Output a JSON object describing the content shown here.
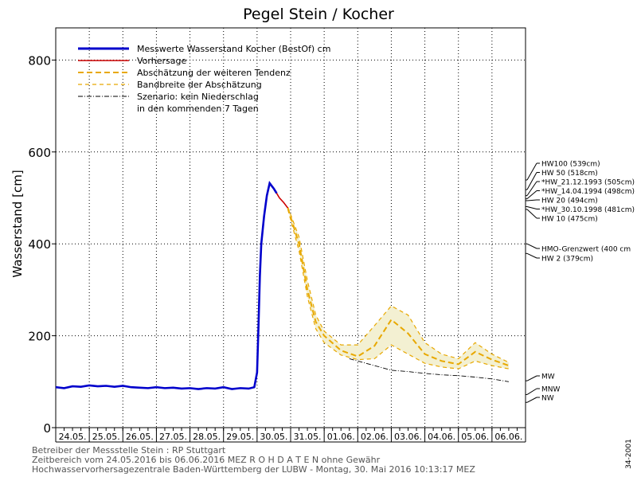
{
  "chart_data": {
    "type": "line",
    "title": "Pegel Stein / Kocher",
    "ylabel": "Wasserstand [cm]",
    "ylim": [
      0,
      870
    ],
    "yticks": [
      0,
      200,
      400,
      600,
      800
    ],
    "x_range": [
      "24.05.2016 00:00",
      "07.06.2016 00:00"
    ],
    "x_tick_labels": [
      "24.05.",
      "25.05.",
      "26.05.",
      "27.05.",
      "28.05.",
      "29.05.",
      "30.05.",
      "31.05.",
      "01.06.",
      "02.06.",
      "03.06.",
      "04.06.",
      "05.06.",
      "06.06."
    ],
    "grid": true,
    "legend": {
      "position": "top-left",
      "entries": [
        {
          "label": "Messwerte Wasserstand Kocher  (BestOf) cm",
          "color": "#0000cc",
          "style": "solid-thick"
        },
        {
          "label": "Vorhersage",
          "color": "#cc0000",
          "style": "solid"
        },
        {
          "label": "Abschätzung der weiteren Tendenz",
          "color": "#e8a800",
          "style": "dashed-thick"
        },
        {
          "label": "Bandbreite der Abschätzung",
          "color": "#e8a800",
          "style": "dashed"
        },
        {
          "label": "Szenario: kein Niederschlag",
          "color": "#000000",
          "style": "dash-dot"
        },
        {
          "label": "in den kommenden 7 Tagen",
          "color": "",
          "style": "none"
        }
      ]
    },
    "series": [
      {
        "name": "Messwerte Wasserstand Kocher  (BestOf) cm",
        "color": "#0000cc",
        "points": [
          [
            "24.05.2016 00:00",
            88
          ],
          [
            "24.05.2016 06:00",
            86
          ],
          [
            "24.05.2016 12:00",
            90
          ],
          [
            "24.05.2016 18:00",
            89
          ],
          [
            "25.05.2016 00:00",
            92
          ],
          [
            "25.05.2016 06:00",
            90
          ],
          [
            "25.05.2016 12:00",
            91
          ],
          [
            "25.05.2016 18:00",
            89
          ],
          [
            "26.05.2016 00:00",
            91
          ],
          [
            "26.05.2016 06:00",
            88
          ],
          [
            "26.05.2016 12:00",
            87
          ],
          [
            "26.05.2016 18:00",
            86
          ],
          [
            "27.05.2016 00:00",
            88
          ],
          [
            "27.05.2016 06:00",
            86
          ],
          [
            "27.05.2016 12:00",
            87
          ],
          [
            "27.05.2016 18:00",
            85
          ],
          [
            "28.05.2016 00:00",
            86
          ],
          [
            "28.05.2016 06:00",
            84
          ],
          [
            "28.05.2016 12:00",
            86
          ],
          [
            "28.05.2016 18:00",
            85
          ],
          [
            "29.05.2016 00:00",
            88
          ],
          [
            "29.05.2016 06:00",
            84
          ],
          [
            "29.05.2016 12:00",
            86
          ],
          [
            "29.05.2016 18:00",
            85
          ],
          [
            "29.05.2016 22:00",
            88
          ],
          [
            "30.05.2016 00:00",
            120
          ],
          [
            "30.05.2016 01:00",
            220
          ],
          [
            "30.05.2016 02:00",
            330
          ],
          [
            "30.05.2016 03:00",
            400
          ],
          [
            "30.05.2016 05:00",
            460
          ],
          [
            "30.05.2016 07:00",
            505
          ],
          [
            "30.05.2016 09:00",
            532
          ],
          [
            "30.05.2016 12:00",
            520
          ],
          [
            "30.05.2016 14:00",
            510
          ]
        ]
      },
      {
        "name": "Vorhersage",
        "color": "#cc0000",
        "points": [
          [
            "30.05.2016 14:00",
            510
          ],
          [
            "30.05.2016 16:00",
            500
          ],
          [
            "30.05.2016 19:00",
            490
          ],
          [
            "30.05.2016 22:00",
            478
          ]
        ]
      },
      {
        "name": "Abschätzung der weiteren Tendenz",
        "color": "#e8a800",
        "points": [
          [
            "30.05.2016 22:00",
            478
          ],
          [
            "31.05.2016 06:00",
            400
          ],
          [
            "31.05.2016 12:00",
            300
          ],
          [
            "31.05.2016 18:00",
            230
          ],
          [
            "01.06.2016 00:00",
            200
          ],
          [
            "01.06.2016 12:00",
            168
          ],
          [
            "02.06.2016 00:00",
            155
          ],
          [
            "02.06.2016 12:00",
            178
          ],
          [
            "03.06.2016 00:00",
            235
          ],
          [
            "03.06.2016 12:00",
            205
          ],
          [
            "04.06.2016 00:00",
            160
          ],
          [
            "04.06.2016 12:00",
            145
          ],
          [
            "05.06.2016 00:00",
            138
          ],
          [
            "05.06.2016 12:00",
            165
          ],
          [
            "06.06.2016 00:00",
            148
          ],
          [
            "06.06.2016 12:00",
            135
          ]
        ]
      },
      {
        "name": "Bandbreite der Abschätzung",
        "color": "#e8a800",
        "upper": [
          [
            "30.05.2016 22:00",
            480
          ],
          [
            "31.05.2016 06:00",
            415
          ],
          [
            "31.05.2016 12:00",
            320
          ],
          [
            "31.05.2016 18:00",
            245
          ],
          [
            "01.06.2016 00:00",
            210
          ],
          [
            "01.06.2016 12:00",
            180
          ],
          [
            "02.06.2016 00:00",
            180
          ],
          [
            "02.06.2016 12:00",
            222
          ],
          [
            "03.06.2016 00:00",
            265
          ],
          [
            "03.06.2016 12:00",
            245
          ],
          [
            "04.06.2016 00:00",
            185
          ],
          [
            "04.06.2016 12:00",
            160
          ],
          [
            "05.06.2016 00:00",
            150
          ],
          [
            "05.06.2016 12:00",
            185
          ],
          [
            "06.06.2016 00:00",
            160
          ],
          [
            "06.06.2016 12:00",
            142
          ]
        ],
        "lower": [
          [
            "30.05.2016 22:00",
            475
          ],
          [
            "31.05.2016 06:00",
            385
          ],
          [
            "31.05.2016 12:00",
            285
          ],
          [
            "31.05.2016 18:00",
            215
          ],
          [
            "01.06.2016 00:00",
            185
          ],
          [
            "01.06.2016 12:00",
            158
          ],
          [
            "02.06.2016 00:00",
            148
          ],
          [
            "02.06.2016 12:00",
            150
          ],
          [
            "03.06.2016 00:00",
            180
          ],
          [
            "03.06.2016 12:00",
            160
          ],
          [
            "04.06.2016 00:00",
            140
          ],
          [
            "04.06.2016 12:00",
            132
          ],
          [
            "05.06.2016 00:00",
            128
          ],
          [
            "05.06.2016 12:00",
            145
          ],
          [
            "06.06.2016 00:00",
            135
          ],
          [
            "06.06.2016 12:00",
            128
          ]
        ]
      },
      {
        "name": "Szenario: kein Niederschlag",
        "color": "#000000",
        "points": [
          [
            "01.06.2016 18:00",
            150
          ],
          [
            "02.06.2016 12:00",
            135
          ],
          [
            "03.06.2016 00:00",
            125
          ],
          [
            "03.06.2016 12:00",
            122
          ],
          [
            "04.06.2016 00:00",
            118
          ],
          [
            "04.06.2016 12:00",
            115
          ],
          [
            "05.06.2016 00:00",
            113
          ],
          [
            "05.06.2016 12:00",
            110
          ],
          [
            "06.06.2016 00:00",
            106
          ],
          [
            "06.06.2016 12:00",
            100
          ]
        ]
      }
    ],
    "thresholds": [
      {
        "label": "HW100 (539cm)",
        "value": 539
      },
      {
        "label": "HW 50 (518cm)",
        "value": 518
      },
      {
        "label": "*HW_21.12.1993 (505cm)",
        "value": 505
      },
      {
        "label": "*HW_14.04.1994 (498cm)",
        "value": 498
      },
      {
        "label": "HW 20 (494cm)",
        "value": 494
      },
      {
        "label": "*HW_30.10.1998 (481cm)",
        "value": 481
      },
      {
        "label": "HW 10 (475cm)",
        "value": 475
      },
      {
        "label": "HMO-Grenzwert (400 cm",
        "value": 400
      },
      {
        "label": "HW 2 (379cm)",
        "value": 379
      },
      {
        "label": "MW",
        "value": 102
      },
      {
        "label": "MNW",
        "value": 72
      },
      {
        "label": "NW",
        "value": 55
      }
    ],
    "footer": [
      "Betreiber der Messstelle Stein : RP Stuttgart",
      "Zeitbereich vom 24.05.2016 bis 06.06.2016    MEZ    R O H D A T E N ohne Gewähr",
      "Hochwasservorhersagezentrale Baden-Württemberg der LUBW - Montag, 30. Mai 2016 10:13:17 MEZ"
    ],
    "side_id": "34-2001"
  }
}
